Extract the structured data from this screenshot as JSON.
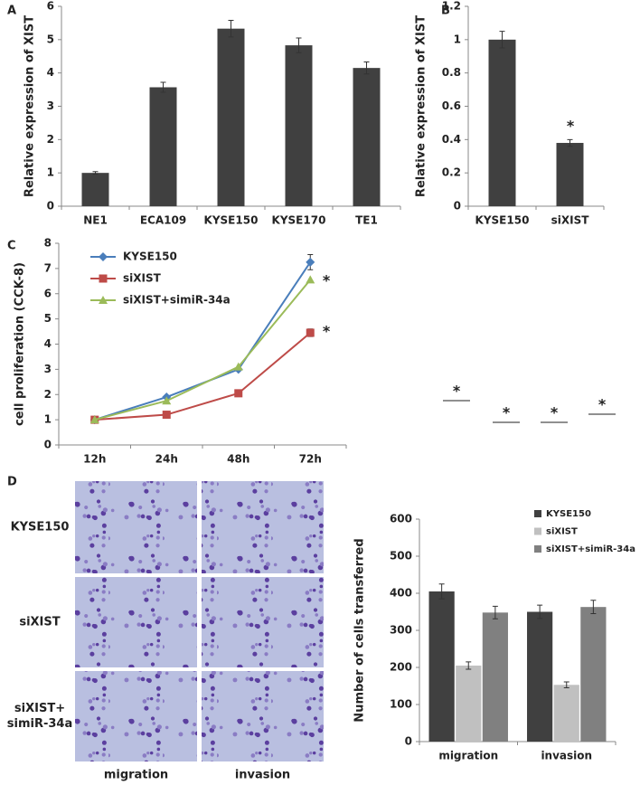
{
  "chart_data": [
    {
      "type": "bar",
      "panel": "A",
      "ylabel": "Relative expression of XIST",
      "categories": [
        "NE1",
        "ECA109",
        "KYSE150",
        "KYSE170",
        "TE1"
      ],
      "values": [
        1.0,
        3.57,
        5.33,
        4.83,
        4.15
      ],
      "errors": [
        0.04,
        0.15,
        0.25,
        0.22,
        0.18
      ],
      "color": "#404040",
      "ylim": [
        0,
        6
      ],
      "yticks": [
        0,
        1,
        2,
        3,
        4,
        5,
        6
      ]
    },
    {
      "type": "bar",
      "panel": "B",
      "ylabel": "Relative expression of XIST",
      "categories": [
        "KYSE150",
        "siXIST"
      ],
      "values": [
        1.0,
        0.38
      ],
      "errors": [
        0.05,
        0.02
      ],
      "color": "#404040",
      "ylim": [
        0,
        1.2
      ],
      "yticks": [
        0,
        0.2,
        0.4,
        0.6,
        0.8,
        1,
        1.2
      ],
      "annotations": [
        "*"
      ]
    },
    {
      "type": "line",
      "panel": "C",
      "ylabel": "cell proliferation (CCK-8)",
      "categories": [
        "12h",
        "24h",
        "48h",
        "72h"
      ],
      "series": [
        {
          "name": "KYSE150",
          "color": "#4a7ebb",
          "marker": "diamond",
          "values": [
            1.0,
            1.9,
            3.0,
            7.25
          ],
          "errors": [
            null,
            0.05,
            0.05,
            0.3
          ]
        },
        {
          "name": "siXIST",
          "color": "#be4b48",
          "marker": "square",
          "values": [
            1.0,
            1.2,
            2.05,
            4.45
          ],
          "errors": [
            null,
            null,
            null,
            0.15
          ]
        },
        {
          "name": "siXIST+simiR-34a",
          "color": "#9bbb59",
          "marker": "triangle",
          "values": [
            1.0,
            1.75,
            3.1,
            6.55
          ],
          "errors": [
            null,
            null,
            null,
            null
          ]
        }
      ],
      "ylim": [
        0,
        8
      ],
      "yticks": [
        0,
        1,
        2,
        3,
        4,
        5,
        6,
        7,
        8
      ],
      "legend": "upper left",
      "annotations": [
        "*",
        "*"
      ]
    },
    {
      "type": "bar",
      "ylabel": "Number of cells transferred",
      "categories": [
        "migration",
        "invasion"
      ],
      "series": [
        {
          "name": "KYSE150",
          "color": "#404040",
          "values": [
            405,
            350
          ],
          "errors": [
            20,
            18
          ]
        },
        {
          "name": "siXIST",
          "color": "#c0c0c0",
          "values": [
            205,
            153
          ],
          "errors": [
            10,
            8
          ]
        },
        {
          "name": "siXIST+simiR-34a",
          "color": "#808080",
          "values": [
            348,
            363
          ],
          "errors": [
            17,
            18
          ]
        }
      ],
      "ylim": [
        0,
        600
      ],
      "yticks": [
        0,
        100,
        200,
        300,
        400,
        500,
        600
      ],
      "legend": "upper right",
      "annotations": [
        "*",
        "*",
        "*",
        "*"
      ]
    }
  ],
  "image_grid": {
    "panel": "D",
    "row_labels": [
      [
        "KYSE150"
      ],
      [
        "siXIST"
      ],
      [
        "siXIST+",
        "simiR-34a"
      ]
    ],
    "column_labels": [
      "migration",
      "invasion"
    ]
  }
}
